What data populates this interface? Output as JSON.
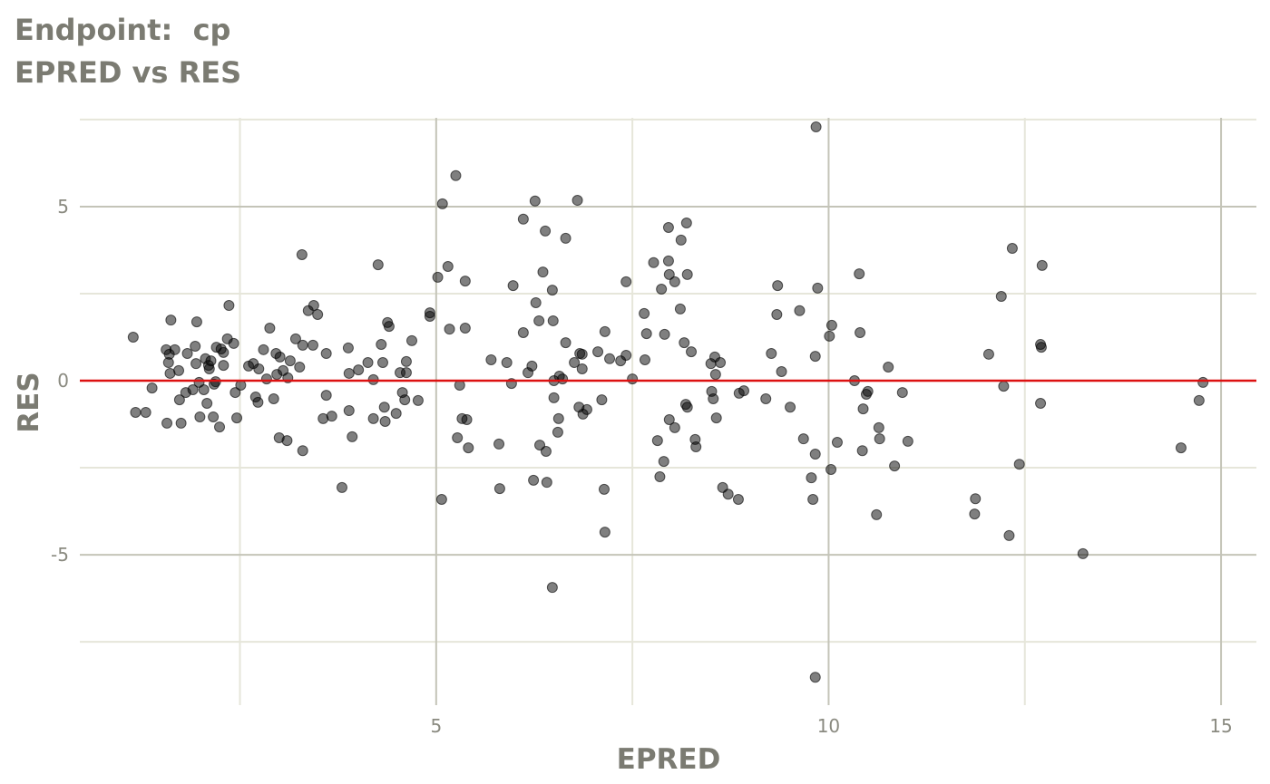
{
  "chart_data": {
    "type": "scatter",
    "title": "Endpoint:  cp",
    "subtitle": "EPRED vs RES",
    "x_label": "EPRED",
    "y_label": "RES",
    "xlim": [
      0.46,
      15.45
    ],
    "ylim": [
      -9.32,
      7.55
    ],
    "xticks": [
      5,
      10,
      15
    ],
    "yticks": [
      -5,
      0,
      5
    ],
    "grid": true,
    "reference_line": {
      "value": 0,
      "color": "#dd1111"
    },
    "series": [
      {
        "color": "#000000",
        "x": [
          1.14,
          1.17,
          1.3,
          1.38,
          1.56,
          1.57,
          1.59,
          1.6,
          1.61,
          1.62,
          1.67,
          1.72,
          1.73,
          1.75,
          1.81,
          1.83,
          1.9,
          1.93,
          1.95,
          1.94,
          1.98,
          1.99,
          2.04,
          2.06,
          2.08,
          2.1,
          2.11,
          2.13,
          2.16,
          2.17,
          2.19,
          2.2,
          2.24,
          2.26,
          2.29,
          2.29,
          2.34,
          2.36,
          2.42,
          2.44,
          2.46,
          2.51,
          2.61,
          2.67,
          2.7,
          2.73,
          2.74,
          2.8,
          2.84,
          2.88,
          2.93,
          2.96,
          2.97,
          3.0,
          3.01,
          3.05,
          3.1,
          3.11,
          3.14,
          3.21,
          3.26,
          3.29,
          3.3,
          3.3,
          3.37,
          3.44,
          3.43,
          3.49,
          3.56,
          3.6,
          3.6,
          3.67,
          3.8,
          3.88,
          3.89,
          3.89,
          3.93,
          4.01,
          4.13,
          4.2,
          4.2,
          4.26,
          4.3,
          4.32,
          4.34,
          4.35,
          4.38,
          4.4,
          4.49,
          4.54,
          4.57,
          4.6,
          4.62,
          4.62,
          4.69,
          4.77,
          4.92,
          4.92,
          5.02,
          5.07,
          5.08,
          5.15,
          5.17,
          5.25,
          5.27,
          5.3,
          5.33,
          5.37,
          5.37,
          5.39,
          5.41,
          5.7,
          5.8,
          5.81,
          5.9,
          5.96,
          5.98,
          6.11,
          6.11,
          6.17,
          6.22,
          6.24,
          6.26,
          6.27,
          6.31,
          6.32,
          6.36,
          6.39,
          6.4,
          6.41,
          6.48,
          6.48,
          6.49,
          6.5,
          6.5,
          6.55,
          6.56,
          6.57,
          6.61,
          6.65,
          6.65,
          6.76,
          6.8,
          6.82,
          6.83,
          6.86,
          6.86,
          6.87,
          6.92,
          7.06,
          7.11,
          7.14,
          7.15,
          7.15,
          7.21,
          7.35,
          7.42,
          7.42,
          7.5,
          7.65,
          7.66,
          7.68,
          7.77,
          7.82,
          7.85,
          7.87,
          7.9,
          7.91,
          7.96,
          7.96,
          7.97,
          7.97,
          8.04,
          8.04,
          8.11,
          8.12,
          8.16,
          8.18,
          8.19,
          8.2,
          8.2,
          8.25,
          8.3,
          8.31,
          8.5,
          8.51,
          8.53,
          8.55,
          8.56,
          8.57,
          8.62,
          8.65,
          8.72,
          8.85,
          8.86,
          8.92,
          9.2,
          9.27,
          9.34,
          9.35,
          9.4,
          9.51,
          9.63,
          9.68,
          9.78,
          9.8,
          9.83,
          9.83,
          9.83,
          9.84,
          9.86,
          10.01,
          10.03,
          10.04,
          10.11,
          10.33,
          10.39,
          10.4,
          10.43,
          10.44,
          10.48,
          10.5,
          10.61,
          10.64,
          10.65,
          10.76,
          10.84,
          10.94,
          11.01,
          11.86,
          11.87,
          12.04,
          12.2,
          12.23,
          12.3,
          12.34,
          12.43,
          12.7,
          12.71,
          12.7,
          12.72,
          13.24,
          14.49,
          14.72,
          14.77
        ],
        "values": [
          1.25,
          -0.91,
          -0.91,
          -0.21,
          0.89,
          -1.22,
          0.52,
          0.76,
          0.21,
          1.74,
          0.89,
          0.29,
          -0.55,
          -1.22,
          -0.34,
          0.78,
          -0.26,
          0.99,
          1.69,
          0.49,
          -0.05,
          -1.04,
          -0.26,
          0.63,
          -0.65,
          0.44,
          0.34,
          0.57,
          -1.04,
          -0.1,
          -0.03,
          0.96,
          -1.33,
          0.91,
          0.81,
          0.44,
          1.2,
          2.16,
          1.07,
          -0.34,
          -1.07,
          -0.13,
          0.42,
          0.49,
          -0.47,
          -0.62,
          0.34,
          0.89,
          0.05,
          1.51,
          -0.52,
          0.78,
          0.18,
          -1.64,
          0.68,
          0.29,
          -1.72,
          0.08,
          0.57,
          1.2,
          0.39,
          3.62,
          -2.01,
          1.02,
          2.01,
          2.16,
          1.02,
          1.9,
          -1.09,
          -0.42,
          0.78,
          -1.02,
          -3.07,
          0.94,
          0.21,
          -0.86,
          -1.61,
          0.31,
          0.52,
          0.03,
          -1.09,
          3.33,
          1.04,
          0.52,
          -0.76,
          -1.17,
          1.67,
          1.56,
          -0.94,
          0.23,
          -0.34,
          -0.55,
          0.23,
          0.55,
          1.15,
          -0.57,
          1.95,
          1.85,
          2.97,
          -3.41,
          5.08,
          3.28,
          1.48,
          5.89,
          -1.64,
          -0.13,
          -1.09,
          2.86,
          1.51,
          -1.12,
          -1.93,
          0.6,
          -1.82,
          -3.1,
          0.52,
          -0.08,
          2.73,
          4.64,
          1.38,
          0.23,
          0.42,
          -2.86,
          5.16,
          2.24,
          1.72,
          -1.85,
          3.12,
          4.3,
          -2.03,
          -2.92,
          -5.94,
          2.6,
          1.72,
          -0.49,
          0.0,
          -1.48,
          -1.09,
          0.13,
          0.05,
          4.09,
          1.09,
          0.52,
          5.18,
          -0.76,
          0.78,
          0.76,
          0.34,
          -0.96,
          -0.83,
          0.83,
          -0.55,
          -3.12,
          1.41,
          -4.35,
          0.63,
          0.57,
          2.84,
          0.73,
          0.05,
          1.93,
          0.6,
          1.35,
          3.39,
          -1.72,
          -2.76,
          2.63,
          -2.32,
          1.33,
          4.4,
          3.44,
          3.05,
          -1.12,
          2.84,
          -1.35,
          2.06,
          4.04,
          1.09,
          -0.68,
          4.53,
          3.05,
          -0.76,
          0.83,
          -1.69,
          -1.9,
          0.49,
          -0.31,
          -0.52,
          0.68,
          0.18,
          -1.07,
          0.52,
          -3.07,
          -3.26,
          -3.41,
          -0.36,
          -0.29,
          -0.52,
          0.78,
          1.9,
          2.73,
          0.26,
          -0.76,
          2.01,
          -1.67,
          -2.79,
          -3.41,
          -8.52,
          -2.11,
          0.7,
          7.29,
          2.66,
          1.28,
          -2.55,
          1.59,
          -1.77,
          0.0,
          3.07,
          1.38,
          -2.01,
          -0.81,
          -0.39,
          -0.31,
          -3.85,
          -1.35,
          -1.67,
          0.39,
          -2.45,
          -0.34,
          -1.74,
          -3.83,
          -3.39,
          0.76,
          2.42,
          -0.16,
          -4.45,
          3.8,
          -2.4,
          1.04,
          0.96,
          -0.65,
          3.31,
          -4.97,
          -1.93,
          -0.57,
          -0.05
        ]
      }
    ]
  }
}
